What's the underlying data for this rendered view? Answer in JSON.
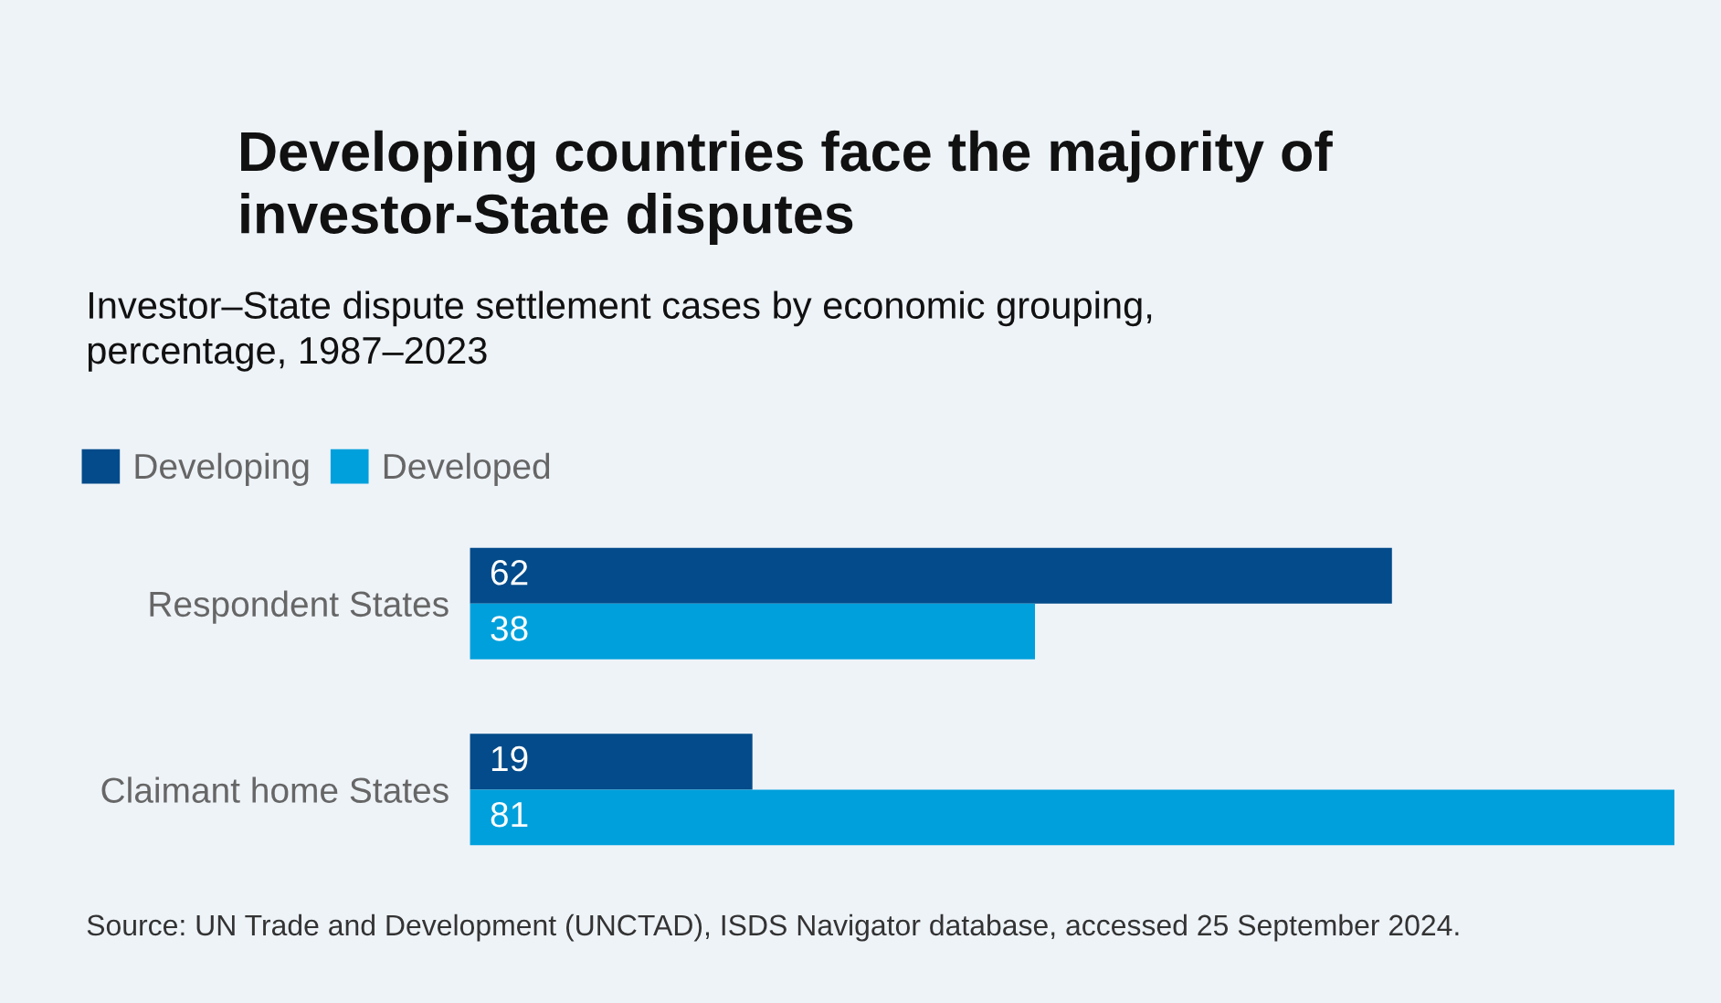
{
  "chart_data": {
    "type": "bar",
    "orientation": "horizontal",
    "title": "Developing countries face the majority of\ninvestor-State disputes",
    "subtitle": "Investor–State dispute settlement cases by economic grouping,\npercentage, 1987–2023",
    "categories": [
      "Respondent States",
      "Claimant home States"
    ],
    "series": [
      {
        "name": "Developing",
        "color": "#034b8a",
        "values": [
          62,
          19
        ]
      },
      {
        "name": "Developed",
        "color": "#00a0dc",
        "values": [
          38,
          81
        ]
      }
    ],
    "data_labels": true,
    "legend": "top left",
    "grid": false,
    "tick_labels": "y",
    "annotations": [
      "Source: UN Trade and Development (UNCTAD), ISDS Navigator database, accessed 25 September 2024."
    ]
  }
}
